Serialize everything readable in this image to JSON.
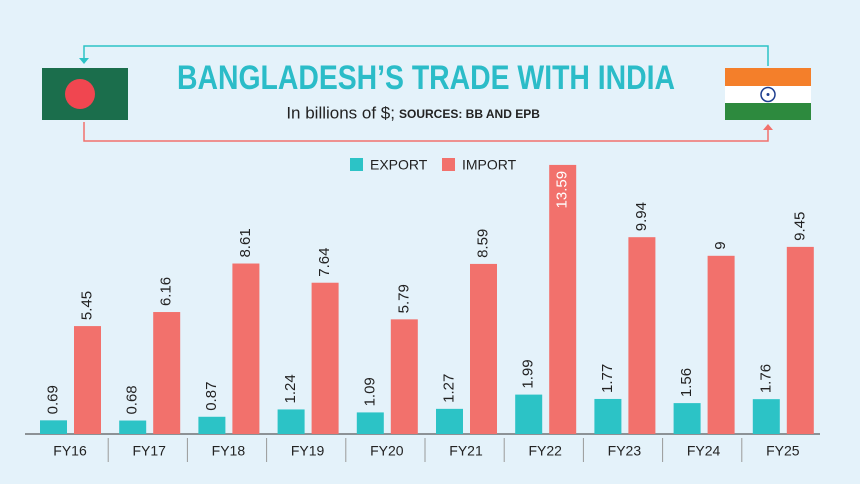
{
  "chart_data": {
    "type": "bar",
    "title": "BANGLADESH’S TRADE WITH INDIA",
    "subtitle": "In billions of $;",
    "source": "SOURCES: BB AND EPB",
    "categories": [
      "FY16",
      "FY17",
      "FY18",
      "FY19",
      "FY20",
      "FY21",
      "FY22",
      "FY23",
      "FY24",
      "FY25"
    ],
    "series": [
      {
        "name": "EXPORT",
        "color": "#2cc3c6",
        "values": [
          0.69,
          0.68,
          0.87,
          1.24,
          1.09,
          1.27,
          1.99,
          1.77,
          1.56,
          1.76
        ]
      },
      {
        "name": "IMPORT",
        "color": "#f2716c",
        "values": [
          5.45,
          6.16,
          8.61,
          7.64,
          5.79,
          8.59,
          13.59,
          9.94,
          9,
          9.45
        ]
      }
    ]
  }
}
